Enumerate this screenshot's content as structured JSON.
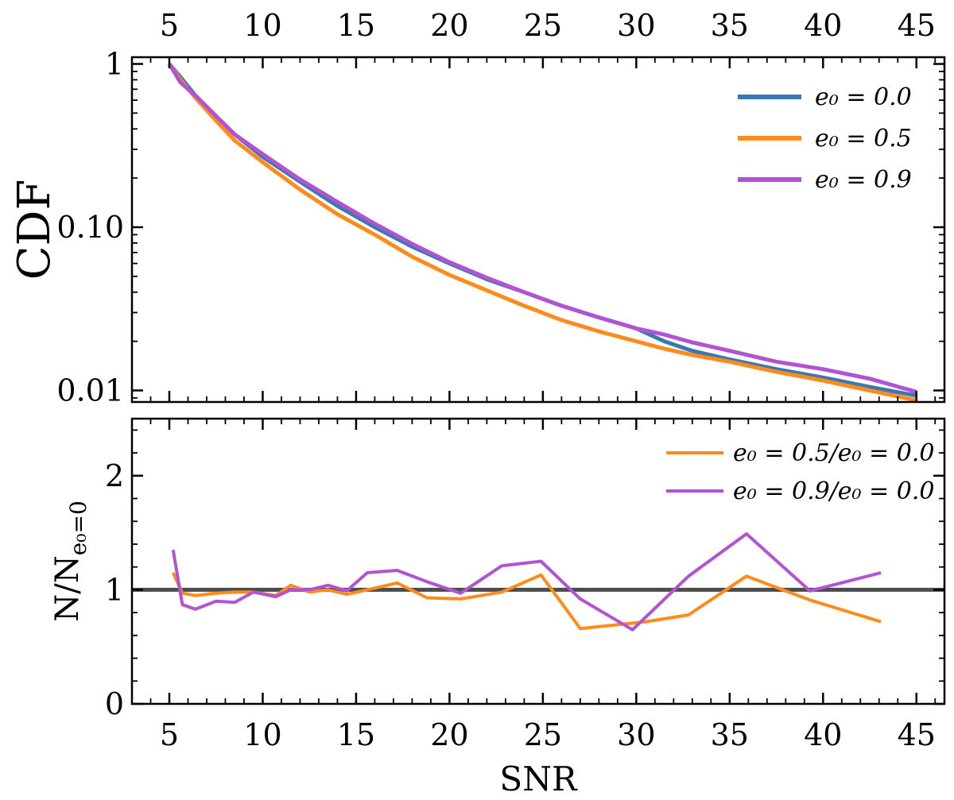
{
  "chart_data": [
    {
      "type": "line",
      "panel": "top",
      "title": "",
      "xlabel": "",
      "ylabel": "CDF",
      "yscale": "log",
      "xlim": [
        3,
        46.5
      ],
      "ylim": [
        0.0085,
        1.1
      ],
      "xticks": [
        5,
        10,
        15,
        20,
        25,
        30,
        35,
        40,
        45
      ],
      "xtick_labels": [
        "5",
        "10",
        "15",
        "20",
        "25",
        "30",
        "35",
        "40",
        "45"
      ],
      "yticks": [
        1,
        0.1,
        0.01
      ],
      "ytick_labels": [
        "1",
        "0.10",
        "0.01"
      ],
      "legend_position": "top-right",
      "series": [
        {
          "name": "e0 = 0.0",
          "label": "e₀ = 0.0",
          "color": "#3a78b0",
          "x": [
            5,
            5.6,
            6.4,
            7.5,
            8.5,
            10,
            12,
            14,
            16,
            18,
            20,
            22,
            24,
            26,
            28,
            30,
            31.5,
            33,
            35,
            37.5,
            40,
            42.5,
            45
          ],
          "y": [
            1.0,
            0.83,
            0.64,
            0.47,
            0.37,
            0.27,
            0.19,
            0.135,
            0.1,
            0.076,
            0.06,
            0.048,
            0.04,
            0.033,
            0.028,
            0.024,
            0.02,
            0.0175,
            0.0155,
            0.0135,
            0.012,
            0.0105,
            0.0093
          ]
        },
        {
          "name": "e0 = 0.5",
          "label": "e₀ = 0.5",
          "color": "#ff8c1a",
          "x": [
            5,
            5.6,
            6.4,
            7.5,
            8.5,
            10,
            12,
            14,
            16,
            18,
            20,
            22,
            24,
            26,
            28,
            30,
            31.5,
            33,
            35,
            37.5,
            40,
            42.5,
            45
          ],
          "y": [
            1.0,
            0.8,
            0.62,
            0.45,
            0.34,
            0.25,
            0.17,
            0.12,
            0.09,
            0.066,
            0.051,
            0.041,
            0.033,
            0.027,
            0.023,
            0.02,
            0.018,
            0.0165,
            0.015,
            0.013,
            0.0115,
            0.01,
            0.0087
          ]
        },
        {
          "name": "e0 = 0.9",
          "label": "e₀ = 0.9",
          "color": "#b253d4",
          "x": [
            5,
            5.6,
            6.4,
            7.5,
            8.5,
            10,
            12,
            14,
            16,
            18,
            20,
            22,
            24,
            26,
            28,
            30,
            31.5,
            33,
            35,
            37.5,
            40,
            42.5,
            45
          ],
          "y": [
            1.0,
            0.77,
            0.64,
            0.48,
            0.37,
            0.28,
            0.196,
            0.143,
            0.105,
            0.079,
            0.061,
            0.049,
            0.04,
            0.033,
            0.028,
            0.024,
            0.022,
            0.0197,
            0.0175,
            0.015,
            0.0135,
            0.0118,
            0.0098
          ]
        }
      ]
    },
    {
      "type": "line",
      "panel": "bottom",
      "title": "",
      "xlabel": "SNR",
      "ylabel": "N/N",
      "ylabel_sub": "e₀=0",
      "xlim": [
        3,
        46.5
      ],
      "ylim": [
        0,
        2.5
      ],
      "xticks": [
        5,
        10,
        15,
        20,
        25,
        30,
        35,
        40,
        45
      ],
      "xtick_labels": [
        "5",
        "10",
        "15",
        "20",
        "25",
        "30",
        "35",
        "40",
        "45"
      ],
      "yticks": [
        0,
        1,
        2
      ],
      "ytick_labels": [
        "0",
        "1",
        "2"
      ],
      "reference_line": {
        "y": 1.0,
        "color": "#000000",
        "opacity": 0.7
      },
      "legend_position": "top-right",
      "series": [
        {
          "name": "e0 = 0.5/e0 = 0.0",
          "label": "e₀ = 0.5/e₀ = 0.0",
          "color": "#ff8c1a",
          "x": [
            5.2,
            5.7,
            6.4,
            7.5,
            8.5,
            9.5,
            10.7,
            11.5,
            12.5,
            13.5,
            14.5,
            15.6,
            17.2,
            18.8,
            20.6,
            22.8,
            24.9,
            27.0,
            30.5,
            32.8,
            35.9,
            39.3,
            43.1
          ],
          "y": [
            1.15,
            0.97,
            0.95,
            0.97,
            0.98,
            0.98,
            0.95,
            1.04,
            0.98,
            1.0,
            0.96,
            1.0,
            1.06,
            0.93,
            0.92,
            0.98,
            1.13,
            0.66,
            0.72,
            0.78,
            1.12,
            0.91,
            0.72
          ]
        },
        {
          "name": "e0 = 0.9/e0 = 0.0",
          "label": "e₀ = 0.9/e₀ = 0.0",
          "color": "#b253d4",
          "x": [
            5.2,
            5.7,
            6.4,
            7.5,
            8.5,
            9.5,
            10.7,
            11.5,
            12.5,
            13.5,
            14.5,
            15.6,
            17.2,
            18.8,
            20.6,
            22.8,
            24.9,
            27.0,
            29.8,
            32.8,
            35.9,
            39.3,
            43.1
          ],
          "y": [
            1.35,
            0.87,
            0.83,
            0.9,
            0.89,
            0.98,
            0.94,
            1.0,
            1.0,
            1.04,
            0.99,
            1.15,
            1.17,
            1.07,
            0.97,
            1.21,
            1.25,
            0.92,
            0.65,
            1.12,
            1.49,
            0.99,
            1.15
          ]
        }
      ]
    }
  ]
}
